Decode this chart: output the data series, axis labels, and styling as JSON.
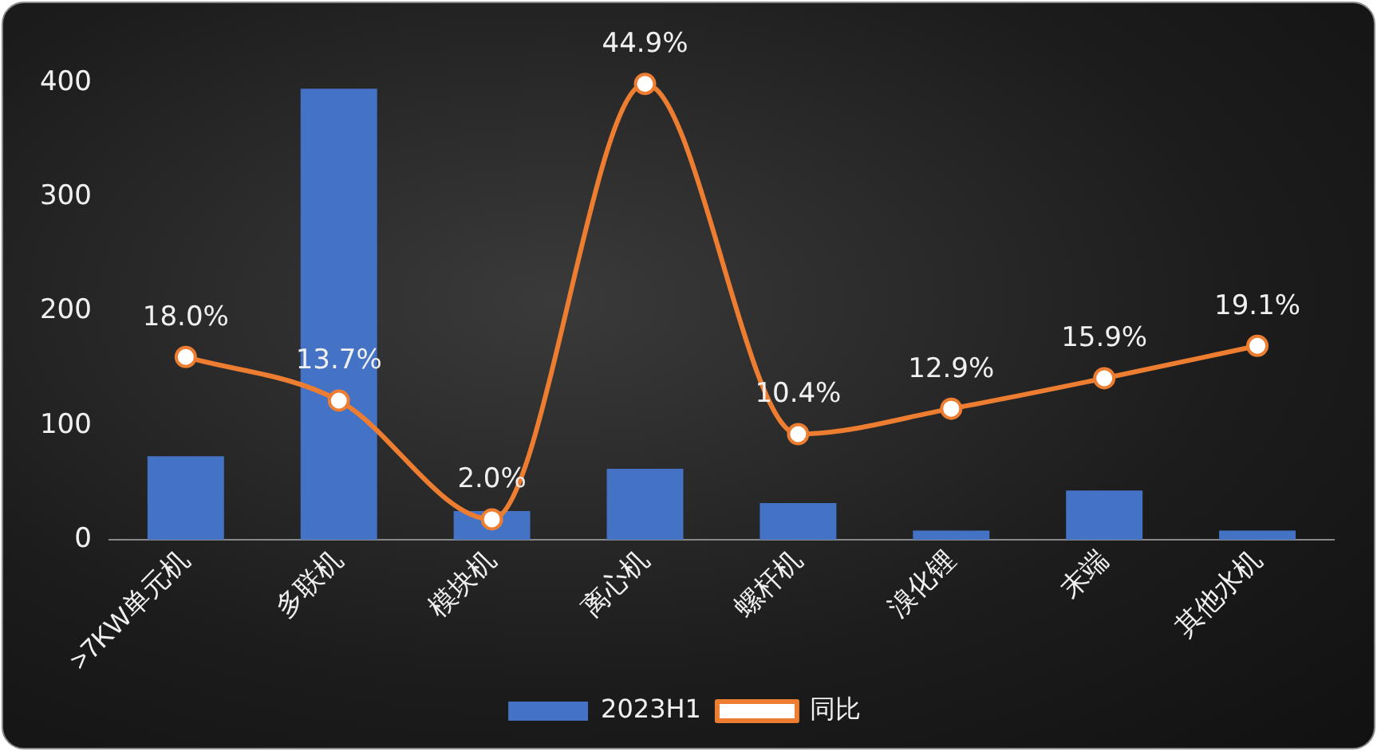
{
  "chart_data": {
    "type": "bar",
    "categories": [
      ">7KW单元机",
      "多联机",
      "模块机",
      "离心机",
      "螺杆机",
      "溴化锂",
      "末端",
      "其他水机"
    ],
    "series": [
      {
        "name": "2023H1",
        "color": "#4472c4",
        "values": [
          73,
          395,
          25,
          62,
          32,
          8,
          43,
          8
        ]
      },
      {
        "name": "同比",
        "type": "line",
        "axis": "y2",
        "color": "#ed7d31",
        "values": [
          18.0,
          13.7,
          2.0,
          44.9,
          10.4,
          12.9,
          15.9,
          19.1
        ],
        "value_labels": [
          "18.0%",
          "13.7%",
          "2.0%",
          "44.9%",
          "10.4%",
          "12.9%",
          "15.9%",
          "19.1%"
        ]
      }
    ],
    "ylim": [
      0,
      400
    ],
    "yticks": [
      0,
      100,
      200,
      300,
      400
    ],
    "grid": false,
    "legend": "bottom",
    "marker": "circle",
    "line_style": "solid"
  }
}
